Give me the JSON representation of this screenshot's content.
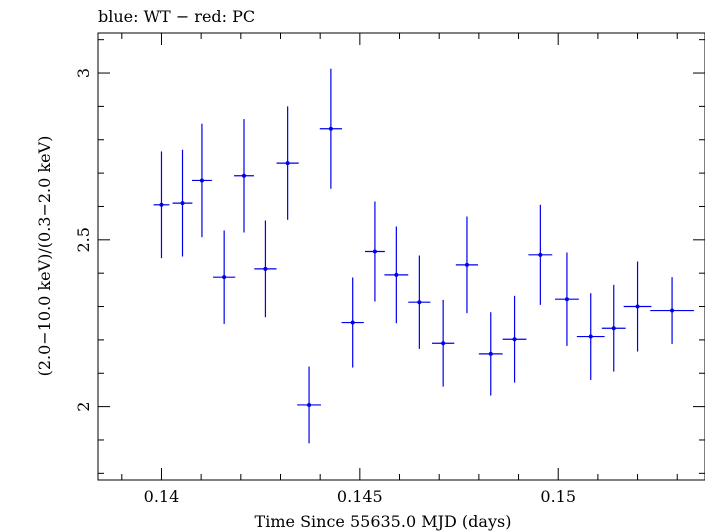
{
  "chart_data": {
    "type": "scatter",
    "title": "blue: WT − red: PC",
    "xlabel": "Time Since 55635.0 MJD (days)",
    "ylabel": "(2.0−10.0 keV)/(0.3−2.0 keV)",
    "xlim": [
      0.1384,
      0.1537
    ],
    "ylim": [
      1.78,
      3.12
    ],
    "xticks": [
      {
        "value": 0.14,
        "label": "0.14"
      },
      {
        "value": 0.145,
        "label": "0.145"
      },
      {
        "value": 0.15,
        "label": "0.15"
      }
    ],
    "yticks": [
      {
        "value": 2.0,
        "label": "2"
      },
      {
        "value": 2.5,
        "label": "2.5"
      },
      {
        "value": 3.0,
        "label": "3"
      }
    ],
    "grid": false,
    "series": [
      {
        "color": "#0000ee",
        "points": [
          {
            "x": 0.14,
            "xerr": 0.0002,
            "y": 2.605,
            "yerr": 0.16
          },
          {
            "x": 0.14053,
            "xerr": 0.00025,
            "y": 2.61,
            "yerr": 0.16
          },
          {
            "x": 0.14102,
            "xerr": 0.00025,
            "y": 2.678,
            "yerr": 0.17
          },
          {
            "x": 0.14158,
            "xerr": 0.00028,
            "y": 2.388,
            "yerr": 0.14
          },
          {
            "x": 0.14208,
            "xerr": 0.00025,
            "y": 2.692,
            "yerr": 0.17
          },
          {
            "x": 0.14262,
            "xerr": 0.00028,
            "y": 2.413,
            "yerr": 0.145
          },
          {
            "x": 0.14318,
            "xerr": 0.00028,
            "y": 2.73,
            "yerr": 0.17
          },
          {
            "x": 0.14372,
            "xerr": 0.0003,
            "y": 2.005,
            "yerr": 0.115
          },
          {
            "x": 0.14427,
            "xerr": 0.00028,
            "y": 2.833,
            "yerr": 0.18
          },
          {
            "x": 0.14482,
            "xerr": 0.00028,
            "y": 2.252,
            "yerr": 0.135
          },
          {
            "x": 0.14538,
            "xerr": 0.00025,
            "y": 2.465,
            "yerr": 0.15
          },
          {
            "x": 0.14592,
            "xerr": 0.0003,
            "y": 2.395,
            "yerr": 0.145
          },
          {
            "x": 0.1465,
            "xerr": 0.00028,
            "y": 2.313,
            "yerr": 0.14
          },
          {
            "x": 0.1471,
            "xerr": 0.00028,
            "y": 2.19,
            "yerr": 0.13
          },
          {
            "x": 0.1477,
            "xerr": 0.00028,
            "y": 2.425,
            "yerr": 0.145
          },
          {
            "x": 0.1483,
            "xerr": 0.0003,
            "y": 2.158,
            "yerr": 0.125
          },
          {
            "x": 0.1489,
            "xerr": 0.0003,
            "y": 2.202,
            "yerr": 0.13
          },
          {
            "x": 0.14955,
            "xerr": 0.0003,
            "y": 2.455,
            "yerr": 0.15
          },
          {
            "x": 0.15022,
            "xerr": 0.0003,
            "y": 2.322,
            "yerr": 0.14
          },
          {
            "x": 0.15082,
            "xerr": 0.00035,
            "y": 2.21,
            "yerr": 0.13
          },
          {
            "x": 0.1514,
            "xerr": 0.0003,
            "y": 2.235,
            "yerr": 0.13
          },
          {
            "x": 0.152,
            "xerr": 0.00035,
            "y": 2.3,
            "yerr": 0.135
          },
          {
            "x": 0.15287,
            "xerr": 0.00055,
            "y": 2.288,
            "yerr": 0.1
          }
        ]
      }
    ]
  }
}
